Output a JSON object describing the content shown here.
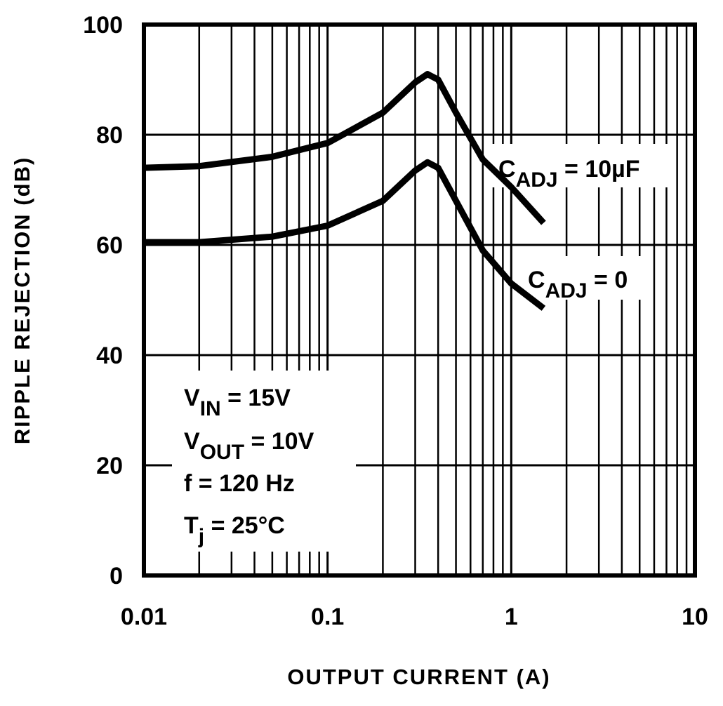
{
  "chart_data": {
    "type": "line",
    "x_label": "OUTPUT CURRENT (A)",
    "y_label": "RIPPLE REJECTION (dB)",
    "xscale": "log",
    "xlim": [
      0.01,
      10
    ],
    "xticks": [
      0.01,
      0.1,
      1,
      10
    ],
    "ylim": [
      0,
      100
    ],
    "yticks": [
      0,
      20,
      40,
      60,
      80,
      100
    ],
    "grid": true,
    "x": [
      0.01,
      0.02,
      0.05,
      0.1,
      0.2,
      0.3,
      0.35,
      0.4,
      0.5,
      0.7,
      1,
      1.5
    ],
    "series": [
      {
        "color": "#000000",
        "values": [
          74,
          74.3,
          76,
          78.5,
          84,
          89.5,
          91,
          90,
          84,
          75.5,
          70.5,
          64
        ]
      },
      {
        "color": "#000000",
        "values": [
          60.5,
          60.5,
          61.5,
          63.5,
          68,
          73.5,
          75,
          74,
          68,
          59,
          53,
          48.5
        ]
      }
    ],
    "annotations": [
      {
        "main": "C",
        "sub": "ADJ",
        "rest": " = 10µF"
      },
      {
        "main": "C",
        "sub": "ADJ",
        "rest": " = 0"
      },
      {
        "main": "V",
        "sub": "IN",
        "rest": " = 15V"
      },
      {
        "main": "V",
        "sub": "OUT",
        "rest": " = 10V"
      },
      {
        "main": "f = 120 Hz"
      },
      {
        "main": "T",
        "sub": "j",
        "rest": " = 25°C"
      }
    ]
  }
}
